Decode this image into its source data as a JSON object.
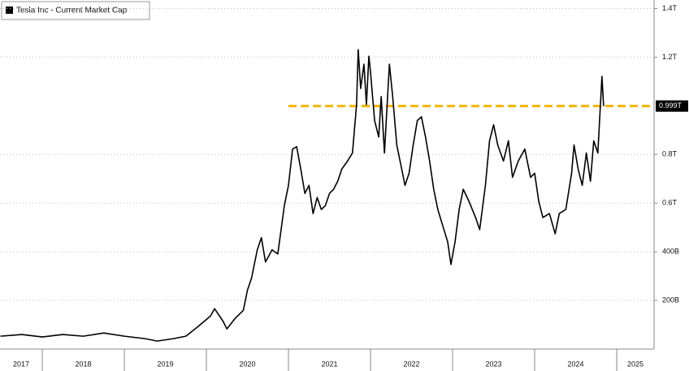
{
  "chart_data": {
    "type": "line",
    "legend_title": "Tesla Inc - Current Market Cap",
    "x": [
      2017.49,
      2017.75,
      2018.0,
      2018.25,
      2018.5,
      2018.75,
      2019.0,
      2019.25,
      2019.4,
      2019.6,
      2019.75,
      2019.9,
      2020.05,
      2020.1,
      2020.2,
      2020.25,
      2020.35,
      2020.45,
      2020.5,
      2020.55,
      2020.62,
      2020.67,
      2020.72,
      2020.8,
      2020.87,
      2020.95,
      2021.0,
      2021.05,
      2021.1,
      2021.15,
      2021.2,
      2021.25,
      2021.3,
      2021.35,
      2021.4,
      2021.45,
      2021.5,
      2021.55,
      2021.6,
      2021.65,
      2021.72,
      2021.78,
      2021.83,
      2021.85,
      2021.88,
      2021.92,
      2021.95,
      2021.98,
      2022.0,
      2022.05,
      2022.1,
      2022.13,
      2022.17,
      2022.23,
      2022.27,
      2022.32,
      2022.38,
      2022.42,
      2022.47,
      2022.52,
      2022.57,
      2022.62,
      2022.67,
      2022.72,
      2022.77,
      2022.82,
      2022.88,
      2022.94,
      2022.98,
      2023.03,
      2023.08,
      2023.13,
      2023.2,
      2023.28,
      2023.33,
      2023.4,
      2023.45,
      2023.5,
      2023.55,
      2023.62,
      2023.68,
      2023.73,
      2023.8,
      2023.88,
      2023.95,
      2024.0,
      2024.05,
      2024.1,
      2024.18,
      2024.25,
      2024.3,
      2024.38,
      2024.45,
      2024.48,
      2024.53,
      2024.58,
      2024.63,
      2024.68,
      2024.72,
      2024.77,
      2024.82,
      2024.84
    ],
    "series": [
      {
        "name": "Tesla Inc - Current Market Cap",
        "color": "#000000",
        "values": [
          53,
          60,
          50,
          60,
          53,
          66,
          53,
          43,
          33,
          43,
          53,
          93,
          136,
          166,
          116,
          83,
          126,
          159,
          242,
          292,
          408,
          458,
          358,
          408,
          391,
          590,
          673,
          822,
          832,
          740,
          640,
          673,
          557,
          623,
          574,
          590,
          640,
          657,
          690,
          740,
          773,
          806,
          1005,
          1231,
          1071,
          1171,
          1005,
          1204,
          1138,
          939,
          872,
          1038,
          806,
          1171,
          1038,
          839,
          740,
          673,
          723,
          839,
          939,
          955,
          872,
          773,
          657,
          574,
          507,
          441,
          348,
          441,
          574,
          657,
          607,
          541,
          491,
          673,
          856,
          922,
          839,
          773,
          856,
          706,
          773,
          822,
          706,
          723,
          607,
          541,
          557,
          474,
          557,
          574,
          723,
          839,
          740,
          673,
          806,
          690,
          856,
          806,
          1121,
          999
        ]
      }
    ],
    "xlim": [
      2017.485,
      2025.455
    ],
    "xticks": [
      2018,
      2019,
      2020,
      2021,
      2022,
      2023,
      2024,
      2025
    ],
    "year_labels": [
      "2017",
      "2018",
      "2019",
      "2020",
      "2021",
      "2022",
      "2023",
      "2024",
      "2025"
    ],
    "ylim": [
      0,
      1435
    ],
    "yticks": [
      {
        "value": 200,
        "label": "200B"
      },
      {
        "value": 400,
        "label": "400B"
      },
      {
        "value": 600,
        "label": "0.6T"
      },
      {
        "value": 800,
        "label": "0.8T"
      },
      {
        "value": 1200,
        "label": "1.2T"
      },
      {
        "value": 1400,
        "label": "1.4T"
      }
    ],
    "reference_line": {
      "value": 999,
      "label": "0.999T",
      "color": "#f5b400",
      "start_x": 2021.0
    },
    "grid": true
  }
}
